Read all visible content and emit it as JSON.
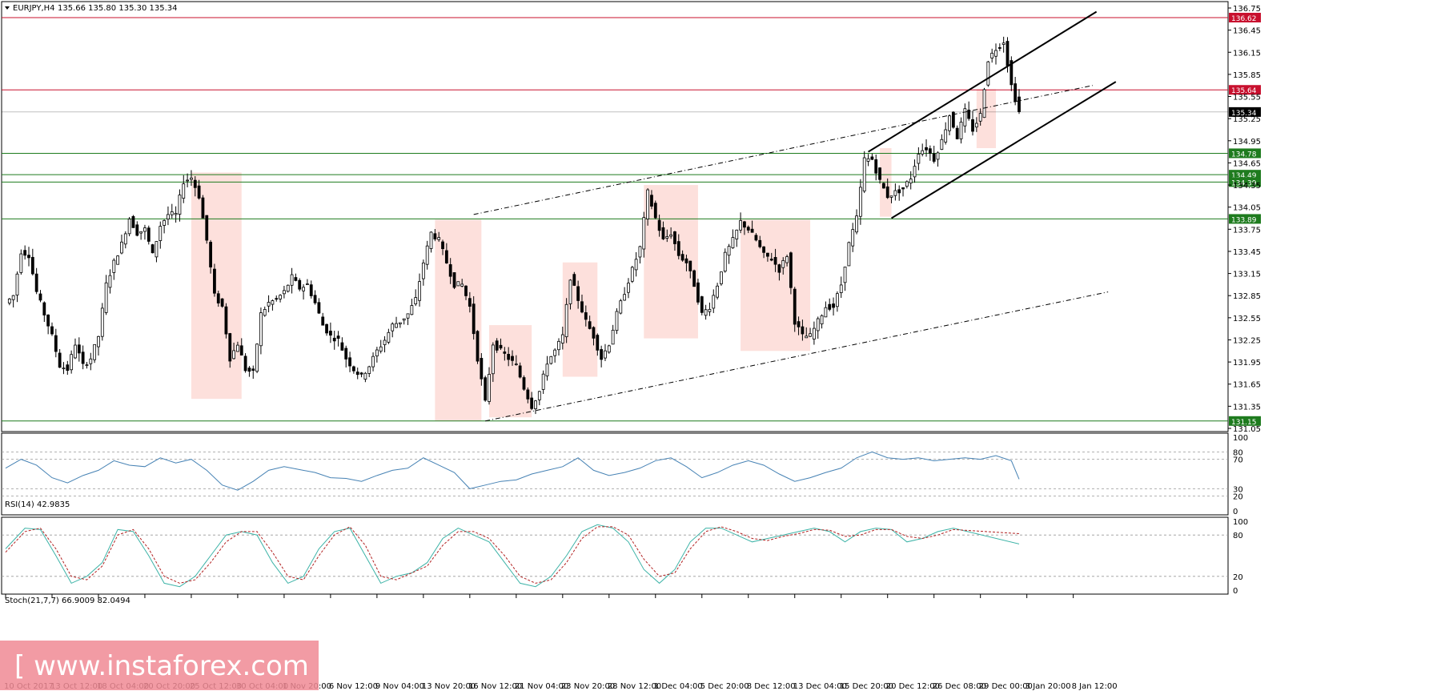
{
  "header": {
    "symbol": "EURJPY,H4",
    "ohlc": "135.66 135.80 135.30 135.34"
  },
  "watermark": {
    "text": "[ www.instaforex.com ]",
    "color": "#f08a94"
  },
  "chart_data": [
    {
      "type": "candlestick",
      "panel": "price",
      "title": "EURJPY,H4",
      "ylim": [
        131.05,
        136.75
      ],
      "grid": false,
      "y_ticks": [
        "136.75",
        "136.45",
        "136.15",
        "135.85",
        "135.55",
        "135.25",
        "134.95",
        "134.65",
        "134.35",
        "134.05",
        "133.75",
        "133.45",
        "133.15",
        "132.85",
        "132.55",
        "132.25",
        "131.95",
        "131.65",
        "131.35",
        "131.05"
      ],
      "x_ticks": [
        "10 Oct 2017",
        "13 Oct 12:00",
        "18 Oct 04:00",
        "20 Oct 20:00",
        "25 Oct 12:00",
        "30 Oct 04:00",
        "1 Nov 20:00",
        "6 Nov 12:00",
        "9 Nov 04:00",
        "13 Nov 20:00",
        "16 Nov 12:00",
        "21 Nov 04:00",
        "23 Nov 20:00",
        "28 Nov 12:00",
        "1 Dec 04:00",
        "5 Dec 20:00",
        "8 Dec 12:00",
        "13 Dec 04:00",
        "15 Dec 20:00",
        "20 Dec 12:00",
        "26 Dec 08:00",
        "29 Dec 00:00",
        "3 Jan 20:00",
        "8 Jan 12:00"
      ],
      "x_tick_index": [
        0,
        12,
        24,
        36,
        48,
        60,
        72,
        84,
        96,
        108,
        120,
        132,
        144,
        156,
        168,
        180,
        192,
        204,
        216,
        228,
        240,
        252,
        264,
        276
      ],
      "close_path": [
        [
          0,
          132.75
        ],
        [
          2,
          132.85
        ],
        [
          4,
          133.45
        ],
        [
          6,
          133.4
        ],
        [
          8,
          132.9
        ],
        [
          10,
          132.6
        ],
        [
          12,
          132.3
        ],
        [
          14,
          131.9
        ],
        [
          16,
          131.85
        ],
        [
          18,
          132.2
        ],
        [
          20,
          131.9
        ],
        [
          22,
          132.0
        ],
        [
          24,
          132.3
        ],
        [
          26,
          133.0
        ],
        [
          28,
          133.3
        ],
        [
          30,
          133.55
        ],
        [
          32,
          133.9
        ],
        [
          34,
          133.7
        ],
        [
          36,
          133.75
        ],
        [
          38,
          133.4
        ],
        [
          40,
          133.8
        ],
        [
          42,
          133.95
        ],
        [
          44,
          133.95
        ],
        [
          46,
          134.4
        ],
        [
          48,
          134.45
        ],
        [
          50,
          134.2
        ],
        [
          52,
          133.6
        ],
        [
          54,
          132.85
        ],
        [
          56,
          132.7
        ],
        [
          58,
          132.0
        ],
        [
          60,
          132.2
        ],
        [
          62,
          131.85
        ],
        [
          64,
          131.8
        ],
        [
          66,
          132.6
        ],
        [
          68,
          132.75
        ],
        [
          70,
          132.8
        ],
        [
          72,
          132.9
        ],
        [
          74,
          133.1
        ],
        [
          76,
          132.95
        ],
        [
          78,
          133.0
        ],
        [
          80,
          132.75
        ],
        [
          82,
          132.45
        ],
        [
          84,
          132.3
        ],
        [
          86,
          132.25
        ],
        [
          88,
          132.0
        ],
        [
          90,
          131.85
        ],
        [
          92,
          131.75
        ],
        [
          94,
          131.9
        ],
        [
          96,
          132.1
        ],
        [
          98,
          132.25
        ],
        [
          100,
          132.45
        ],
        [
          102,
          132.5
        ],
        [
          104,
          132.6
        ],
        [
          106,
          132.8
        ],
        [
          108,
          133.3
        ],
        [
          110,
          133.7
        ],
        [
          112,
          133.6
        ],
        [
          114,
          133.3
        ],
        [
          116,
          133.0
        ],
        [
          118,
          133.0
        ],
        [
          120,
          132.7
        ],
        [
          122,
          132.0
        ],
        [
          124,
          131.4
        ],
        [
          126,
          132.2
        ],
        [
          128,
          132.1
        ],
        [
          130,
          132.0
        ],
        [
          132,
          131.9
        ],
        [
          134,
          131.6
        ],
        [
          136,
          131.35
        ],
        [
          138,
          131.55
        ],
        [
          140,
          131.95
        ],
        [
          142,
          132.1
        ],
        [
          144,
          132.3
        ],
        [
          146,
          133.1
        ],
        [
          148,
          132.8
        ],
        [
          150,
          132.5
        ],
        [
          152,
          132.3
        ],
        [
          154,
          132.0
        ],
        [
          156,
          132.2
        ],
        [
          158,
          132.6
        ],
        [
          160,
          132.9
        ],
        [
          162,
          133.2
        ],
        [
          164,
          133.5
        ],
        [
          166,
          134.25
        ],
        [
          168,
          133.9
        ],
        [
          170,
          133.6
        ],
        [
          172,
          133.7
        ],
        [
          174,
          133.4
        ],
        [
          176,
          133.3
        ],
        [
          178,
          133.0
        ],
        [
          180,
          132.6
        ],
        [
          182,
          132.7
        ],
        [
          184,
          133.0
        ],
        [
          186,
          133.4
        ],
        [
          188,
          133.6
        ],
        [
          190,
          133.85
        ],
        [
          192,
          133.75
        ],
        [
          194,
          133.6
        ],
        [
          196,
          133.4
        ],
        [
          198,
          133.35
        ],
        [
          200,
          133.2
        ],
        [
          202,
          133.4
        ],
        [
          204,
          132.5
        ],
        [
          206,
          132.3
        ],
        [
          208,
          132.3
        ],
        [
          210,
          132.5
        ],
        [
          212,
          132.7
        ],
        [
          214,
          132.7
        ],
        [
          216,
          133.0
        ],
        [
          218,
          133.55
        ],
        [
          220,
          133.9
        ],
        [
          222,
          134.7
        ],
        [
          224,
          134.7
        ],
        [
          226,
          134.4
        ],
        [
          228,
          134.2
        ],
        [
          230,
          134.25
        ],
        [
          232,
          134.3
        ],
        [
          234,
          134.45
        ],
        [
          236,
          134.8
        ],
        [
          238,
          134.85
        ],
        [
          240,
          134.7
        ],
        [
          242,
          134.95
        ],
        [
          244,
          135.3
        ],
        [
          246,
          135.0
        ],
        [
          248,
          135.35
        ],
        [
          250,
          135.1
        ],
        [
          252,
          135.3
        ],
        [
          254,
          136.05
        ],
        [
          256,
          136.2
        ],
        [
          258,
          136.3
        ],
        [
          260,
          135.7
        ],
        [
          262,
          135.34
        ]
      ]
    },
    {
      "type": "line",
      "panel": "rsi",
      "title": "RSI(14) 42.9835",
      "ylim": [
        0,
        100
      ],
      "y_ticks": [
        "100",
        "80",
        "70",
        "30",
        "20",
        "0"
      ],
      "levels": [
        80,
        70,
        30,
        20
      ],
      "color": "#4682b4",
      "x": [
        0,
        4,
        8,
        12,
        16,
        20,
        24,
        28,
        32,
        36,
        40,
        44,
        48,
        52,
        56,
        60,
        64,
        68,
        72,
        76,
        80,
        84,
        88,
        92,
        96,
        100,
        104,
        108,
        112,
        116,
        120,
        124,
        128,
        132,
        136,
        140,
        144,
        148,
        152,
        156,
        160,
        164,
        168,
        172,
        176,
        180,
        184,
        188,
        192,
        196,
        200,
        204,
        208,
        212,
        216,
        220,
        224,
        228,
        232,
        236,
        240,
        244,
        248,
        252,
        256,
        260,
        262
      ],
      "values": [
        58,
        70,
        62,
        45,
        38,
        48,
        55,
        68,
        62,
        60,
        72,
        65,
        70,
        55,
        35,
        28,
        40,
        55,
        60,
        56,
        52,
        45,
        44,
        40,
        48,
        55,
        58,
        72,
        62,
        52,
        30,
        35,
        40,
        42,
        50,
        55,
        60,
        72,
        55,
        48,
        52,
        58,
        68,
        72,
        60,
        45,
        52,
        62,
        68,
        62,
        50,
        40,
        45,
        52,
        58,
        72,
        80,
        72,
        70,
        72,
        68,
        70,
        72,
        70,
        75,
        68,
        43
      ]
    },
    {
      "type": "line",
      "panel": "stochastic",
      "title": "Stoch(21,7,7) 66.9009 82.0494",
      "ylim": [
        0,
        100
      ],
      "y_ticks": [
        "100",
        "80",
        "20",
        "0"
      ],
      "levels": [
        80,
        20
      ],
      "series": [
        {
          "name": "66.9009",
          "color": "#3cb3a7",
          "values": [
            60,
            90,
            88,
            50,
            10,
            20,
            40,
            88,
            85,
            50,
            10,
            5,
            20,
            50,
            80,
            85,
            80,
            40,
            10,
            20,
            60,
            85,
            90,
            50,
            10,
            20,
            25,
            40,
            75,
            90,
            80,
            70,
            40,
            10,
            5,
            20,
            50,
            85,
            95,
            90,
            70,
            30,
            10,
            30,
            70,
            90,
            90,
            80,
            70,
            75,
            80,
            85,
            90,
            85,
            70,
            85,
            90,
            88,
            70,
            75,
            85,
            90,
            67
          ]
        },
        {
          "name": "82.0494",
          "color": "#b22222",
          "values": [
            55,
            85,
            90,
            60,
            20,
            15,
            35,
            80,
            88,
            60,
            20,
            10,
            15,
            40,
            70,
            85,
            85,
            55,
            20,
            15,
            50,
            80,
            92,
            65,
            20,
            15,
            25,
            35,
            65,
            85,
            85,
            75,
            50,
            20,
            10,
            15,
            40,
            75,
            92,
            92,
            80,
            45,
            20,
            25,
            60,
            85,
            92,
            85,
            75,
            72,
            78,
            82,
            88,
            87,
            78,
            80,
            88,
            88,
            78,
            75,
            80,
            88,
            82
          ]
        }
      ],
      "x": [
        0,
        5,
        9,
        13,
        17,
        21,
        25,
        29,
        33,
        37,
        41,
        45,
        49,
        53,
        57,
        61,
        65,
        69,
        73,
        77,
        81,
        85,
        89,
        93,
        97,
        101,
        105,
        109,
        113,
        117,
        121,
        125,
        129,
        133,
        137,
        141,
        145,
        149,
        153,
        157,
        161,
        165,
        169,
        173,
        177,
        181,
        185,
        189,
        193,
        197,
        201,
        205,
        209,
        213,
        217,
        221,
        225,
        229,
        233,
        237,
        241,
        245,
        262
      ]
    }
  ],
  "levels": {
    "red": [
      {
        "value": 136.62,
        "label": "136.62",
        "color": "#c8102e"
      },
      {
        "value": 135.64,
        "label": "135.64",
        "color": "#c8102e"
      }
    ],
    "green": [
      {
        "value": 134.78,
        "label": "134.78",
        "color": "#1e7b1e"
      },
      {
        "value": 134.49,
        "label": "134.49",
        "color": "#1e7b1e"
      },
      {
        "value": 134.39,
        "label": "134.39",
        "color": "#1e7b1e"
      },
      {
        "value": 133.89,
        "label": "133.89",
        "color": "#1e7b1e"
      },
      {
        "value": 131.15,
        "label": "131.15",
        "color": "#1e7b1e"
      }
    ],
    "current": {
      "value": 135.34,
      "label": "135.34",
      "color": "#000000"
    }
  },
  "zones": [
    {
      "x0": 48,
      "x1": 61,
      "y0": 131.45,
      "y1": 134.52
    },
    {
      "x0": 111,
      "x1": 123,
      "y0": 131.15,
      "y1": 133.88
    },
    {
      "x0": 125,
      "x1": 136,
      "y0": 131.2,
      "y1": 132.45
    },
    {
      "x0": 144,
      "x1": 153,
      "y0": 131.75,
      "y1": 133.3
    },
    {
      "x0": 165,
      "x1": 179,
      "y0": 132.27,
      "y1": 134.35
    },
    {
      "x0": 190,
      "x1": 208,
      "y0": 132.1,
      "y1": 133.88
    },
    {
      "x0": 226,
      "x1": 229,
      "y0": 133.92,
      "y1": 134.85
    },
    {
      "x0": 251,
      "x1": 256,
      "y0": 134.85,
      "y1": 135.65
    }
  ],
  "trendlines": [
    {
      "style": "solid",
      "x0": 223,
      "y0": 134.8,
      "x1": 282,
      "y1": 136.7
    },
    {
      "style": "solid",
      "x0": 229,
      "y0": 133.9,
      "x1": 287,
      "y1": 135.75
    },
    {
      "style": "dashed",
      "x0": 121,
      "y0": 133.95,
      "x1": 281,
      "y1": 135.7
    },
    {
      "style": "dashed",
      "x0": 124,
      "y0": 131.15,
      "x1": 285,
      "y1": 132.9
    }
  ]
}
